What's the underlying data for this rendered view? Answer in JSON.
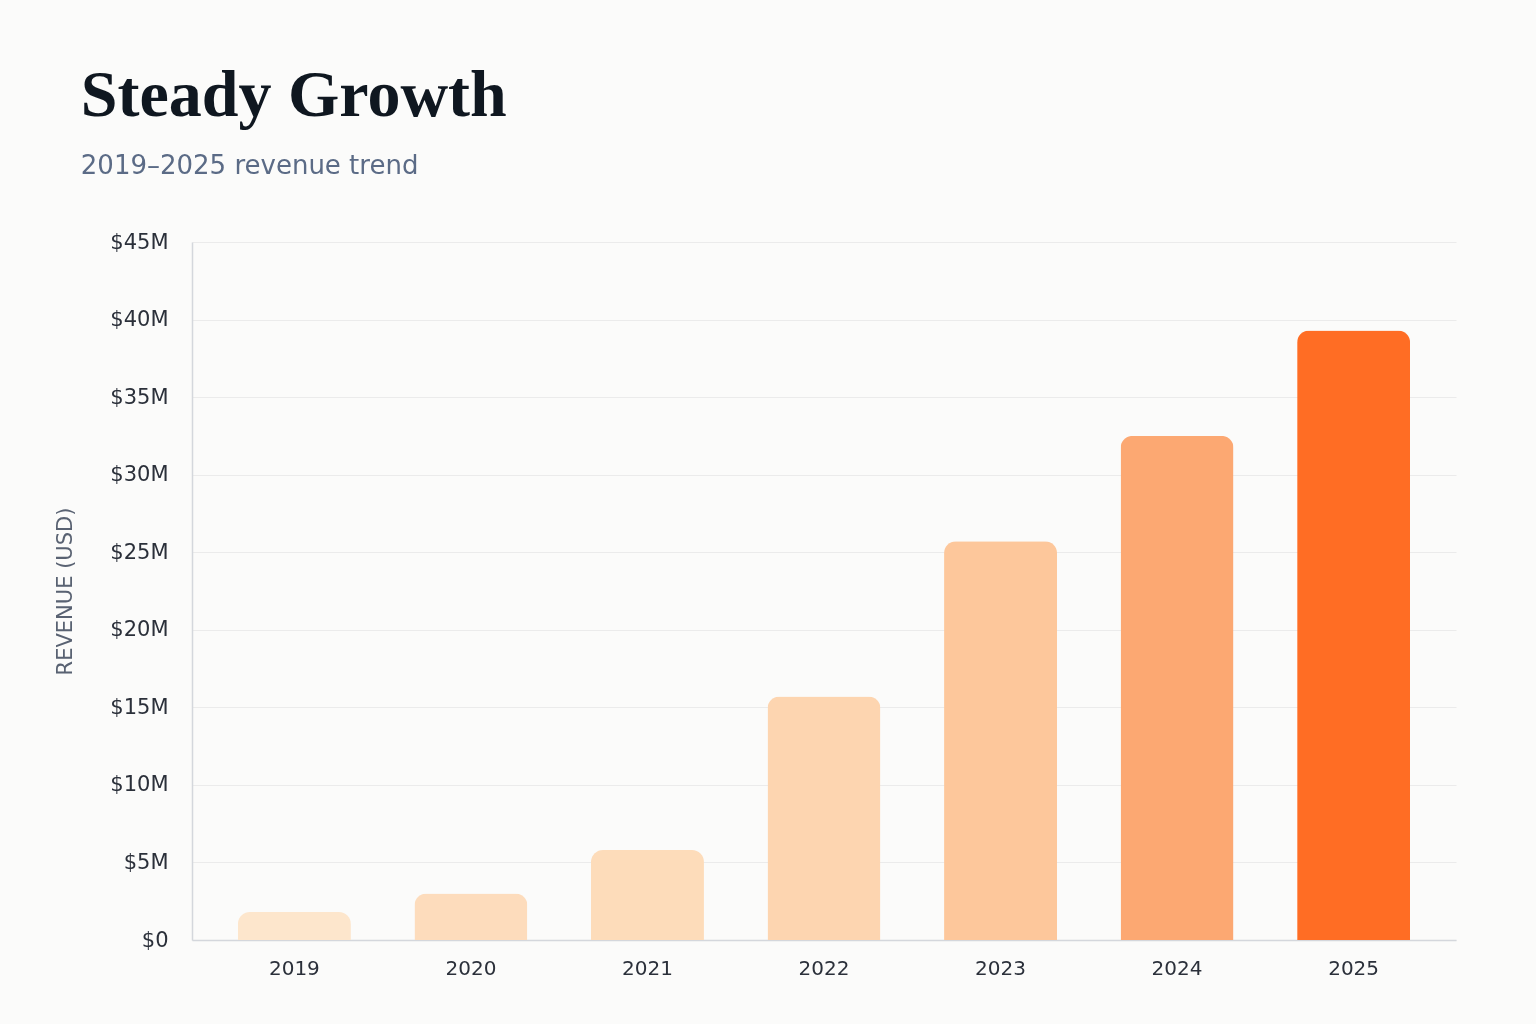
{
  "chart_data": {
    "type": "bar",
    "title": "Steady Growth",
    "subtitle": "2019–2025 revenue trend",
    "ylabel": "REVENUE (USD)",
    "categories": [
      "2019",
      "2020",
      "2021",
      "2022",
      "2023",
      "2024",
      "2025"
    ],
    "values": [
      1.8,
      3.0,
      5.8,
      15.7,
      25.7,
      32.5,
      39.3
    ],
    "colors": [
      "#fde6cc",
      "#fddcbc",
      "#fddcba",
      "#fdd5b0",
      "#fdc79b",
      "#fca872",
      "#ff6d24"
    ],
    "ylim": [
      0,
      45
    ],
    "yticks": [
      {
        "value": 0,
        "label": "$0"
      },
      {
        "value": 5,
        "label": "$5M"
      },
      {
        "value": 10,
        "label": "$10M"
      },
      {
        "value": 15,
        "label": "$15M"
      },
      {
        "value": 20,
        "label": "$20M"
      },
      {
        "value": 25,
        "label": "$25M"
      },
      {
        "value": 30,
        "label": "$30M"
      },
      {
        "value": 35,
        "label": "$35M"
      },
      {
        "value": 40,
        "label": "$40M"
      },
      {
        "value": 45,
        "label": "$45M"
      }
    ],
    "grid": "y"
  }
}
